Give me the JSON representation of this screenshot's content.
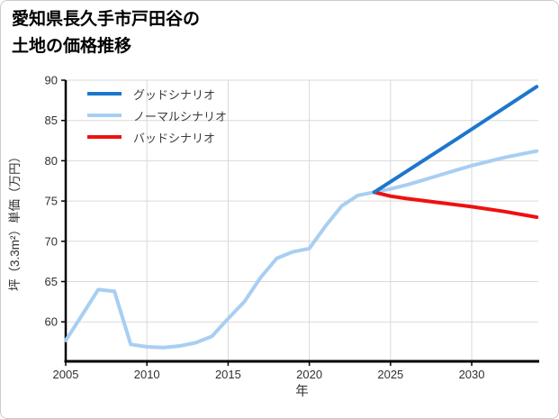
{
  "header": {
    "title_line1": "愛知県長久手市戸田谷の",
    "title_line2": "土地の価格推移"
  },
  "chart_data": {
    "type": "line",
    "title": "愛知県長久手市戸田谷の土地の価格推移",
    "xlabel": "年",
    "ylabel": "坪（3.3m²）単価（万円）",
    "xlim": [
      2005,
      2034.1
    ],
    "ylim": [
      55.1,
      90
    ],
    "xticks": [
      2005,
      2010,
      2015,
      2020,
      2025,
      2030
    ],
    "yticks": [
      60,
      65,
      70,
      75,
      80,
      85,
      90
    ],
    "grid": true,
    "legend_position": "upper-left",
    "colors": {
      "good": "#1c77cc",
      "normal": "#a8cef2",
      "bad": "#ee1111",
      "grid": "#d9d9d9",
      "axis": "#000000",
      "tick_label": "#303030",
      "legend_text": "#3c3c3c"
    },
    "series": [
      {
        "key": "normal",
        "name": "ノーマルシナリオ",
        "color": "#a8cef2",
        "x": [
          2005,
          2006,
          2007,
          2008,
          2009,
          2010,
          2011,
          2012,
          2013,
          2014,
          2015,
          2016,
          2017,
          2018,
          2019,
          2020,
          2021,
          2022,
          2023,
          2024,
          2025,
          2026,
          2027,
          2028,
          2029,
          2030,
          2031,
          2032,
          2033,
          2034
        ],
        "y": [
          57.7,
          60.8,
          64.0,
          63.8,
          57.2,
          56.9,
          56.8,
          57.0,
          57.4,
          58.2,
          60.4,
          62.5,
          65.5,
          67.9,
          68.7,
          69.1,
          71.9,
          74.4,
          75.7,
          76.1,
          76.5,
          77.0,
          77.6,
          78.2,
          78.8,
          79.4,
          79.9,
          80.4,
          80.8,
          81.2
        ]
      },
      {
        "key": "bad",
        "name": "バッドシナリオ",
        "color": "#ee1111",
        "x": [
          2024,
          2025,
          2026,
          2028,
          2030,
          2032,
          2034
        ],
        "y": [
          76.1,
          75.6,
          75.3,
          74.8,
          74.3,
          73.7,
          73.0
        ]
      },
      {
        "key": "good",
        "name": "グッドシナリオ",
        "color": "#1c77cc",
        "x": [
          2024,
          2029,
          2034
        ],
        "y": [
          76.1,
          82.6,
          89.2
        ]
      }
    ],
    "legend_order": [
      "good",
      "normal",
      "bad"
    ]
  }
}
